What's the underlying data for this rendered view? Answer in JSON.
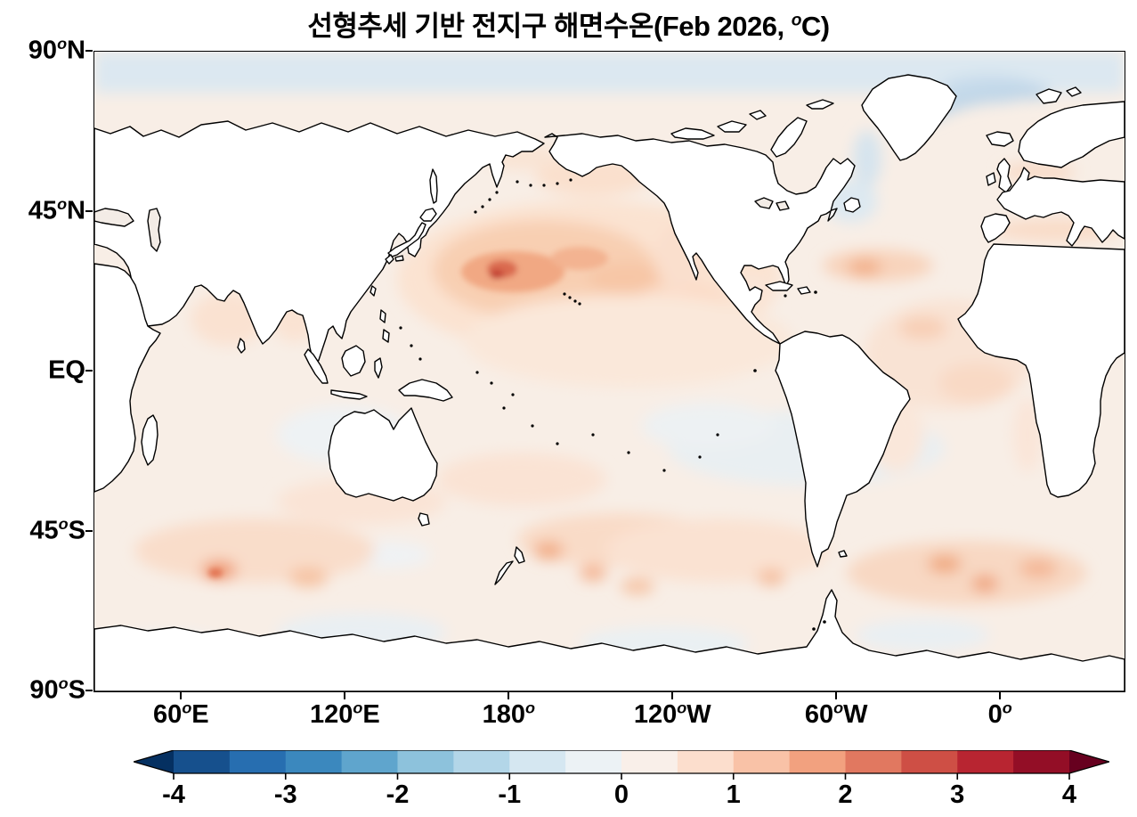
{
  "figure": {
    "title": {
      "before_degree": "선형추세 기반 전지구 해면수온(Feb 2026, ",
      "degree_symbol": "o",
      "after_degree": "C)"
    },
    "map": {
      "y_ticks": [
        {
          "number": "90",
          "degree": true,
          "suffix": "N",
          "frac": 0.0
        },
        {
          "number": "45",
          "degree": true,
          "suffix": "N",
          "frac": 0.25
        },
        {
          "number": "EQ",
          "degree": false,
          "suffix": "",
          "frac": 0.5
        },
        {
          "number": "45",
          "degree": true,
          "suffix": "S",
          "frac": 0.75
        },
        {
          "number": "90",
          "degree": true,
          "suffix": "S",
          "frac": 1.0
        }
      ],
      "x_ticks": [
        {
          "number": "60",
          "degree": true,
          "suffix": "E",
          "frac": 0.085
        },
        {
          "number": "120",
          "degree": true,
          "suffix": "E",
          "frac": 0.244
        },
        {
          "number": "180",
          "degree": true,
          "suffix": "",
          "frac": 0.403
        },
        {
          "number": "120",
          "degree": true,
          "suffix": "W",
          "frac": 0.562
        },
        {
          "number": "60",
          "degree": true,
          "suffix": "W",
          "frac": 0.721
        },
        {
          "number": "0",
          "degree": true,
          "suffix": "",
          "frac": 0.88
        }
      ]
    },
    "colorbar": {
      "tick_labels": [
        "-4",
        "-3",
        "-2",
        "-1",
        "0",
        "1",
        "2",
        "3",
        "4"
      ],
      "under_arrow_color": "#053061",
      "over_arrow_color": "#67001f",
      "segment_colors": [
        "#16508d",
        "#276eb0",
        "#3b88be",
        "#5fa5cd",
        "#8dc2dc",
        "#b3d6e8",
        "#d5e7f1",
        "#ecf2f5",
        "#f9efe9",
        "#fcdecd",
        "#f9c2a7",
        "#f2a17f",
        "#e17860",
        "#ce4f45",
        "#b82531",
        "#930e26"
      ],
      "outline_color": "#000000"
    }
  },
  "chart_data": {
    "type": "heatmap",
    "title": "선형추세 기반 전지구 해면수온(Feb 2026, °C)",
    "units": "°C",
    "time_label": "Feb 2026",
    "projection": "Global latitude-longitude map, Pacific-centered",
    "x_tick_labels": [
      "60°E",
      "120°E",
      "180°",
      "120°W",
      "60°W",
      "0°"
    ],
    "y_tick_labels": [
      "90°N",
      "45°N",
      "EQ",
      "45°S",
      "90°S"
    ],
    "colorbar": {
      "min": -4,
      "max": 4,
      "interval": 0.5,
      "tick_values": [
        -4,
        -3,
        -2,
        -1,
        0,
        1,
        2,
        3,
        4
      ],
      "extended_both_ends": true,
      "diverging_palette": [
        "#053061",
        "#16508d",
        "#276eb0",
        "#3b88be",
        "#5fa5cd",
        "#8dc2dc",
        "#b3d6e8",
        "#d5e7f1",
        "#ecf2f5",
        "#f9efe9",
        "#fcdecd",
        "#f9c2a7",
        "#f2a17f",
        "#e17860",
        "#ce4f45",
        "#b82531",
        "#930e26",
        "#67001f"
      ]
    },
    "observed_anomalies_degC": [
      {
        "region": "Northwest Pacific east of Japan (Kuroshio region)",
        "value": "+1.5 to +3 (strongest warm spot on map)"
      },
      {
        "region": "North Pacific mid-latitudes",
        "value": "+0.5 to +1.5 broad warm pool"
      },
      {
        "region": "Equatorial central-eastern Pacific",
        "value": "0 to -0.5 weak cool tongue"
      },
      {
        "region": "Central Indian Ocean near equator",
        "value": "0 to -0.5 pale cool patch"
      },
      {
        "region": "Arctic Ocean / Nordic Seas band",
        "value": "-0.5 to -1 light cool band"
      },
      {
        "region": "Spot near Svalbard (Barents Sea)",
        "value": "+0.5 to +1"
      },
      {
        "region": "Labrador Sea / south of Greenland",
        "value": "0 to -0.5"
      },
      {
        "region": "North Atlantic subtropics and Gulf Stream",
        "value": "+0.5 to +1"
      },
      {
        "region": "South Indian Ocean ~45°S (spot near 60°E)",
        "value": "+0.5 to +1.5"
      },
      {
        "region": "South Pacific and South Atlantic ~40-50°S",
        "value": "+0.5 to +1.5 mottled"
      },
      {
        "region": "Southern Ocean near Antarctica",
        "value": "0 to -0.5 patches"
      },
      {
        "region": "Most of remaining global ocean",
        "value": "0 to +0.5"
      }
    ]
  }
}
